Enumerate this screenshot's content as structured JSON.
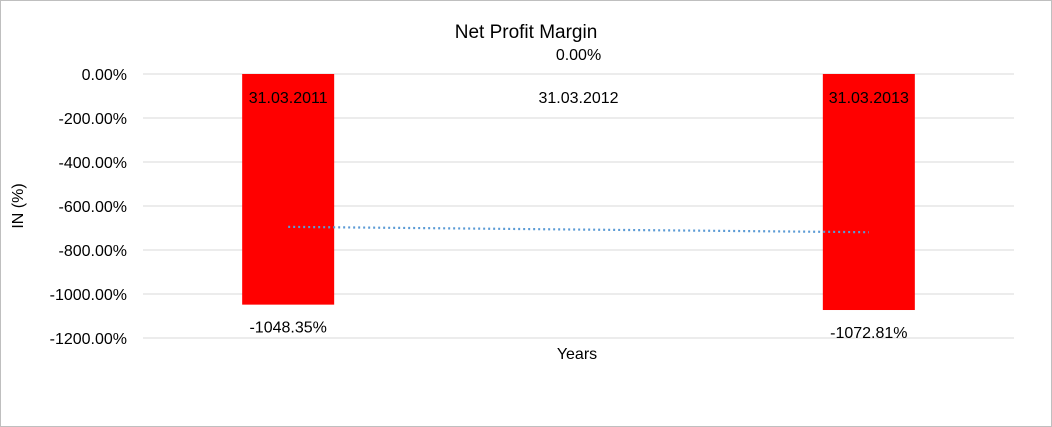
{
  "chart_data": {
    "type": "bar",
    "title": "Net Profit Margin",
    "xlabel": "Years",
    "ylabel": "IN (%)",
    "categories": [
      "31.03.2011",
      "31.03.2012",
      "31.03.2013"
    ],
    "values": [
      -1048.35,
      0,
      -1072.81
    ],
    "data_labels": [
      "-1048.35%",
      "0.00%",
      "-1072.81%"
    ],
    "ylim": [
      -1200,
      0
    ],
    "yticks": [
      0,
      -200,
      -400,
      -600,
      -800,
      -1000,
      -1200
    ],
    "ytick_labels": [
      "0.00%",
      "-200.00%",
      "-400.00%",
      "-600.00%",
      "-800.00%",
      "-1000.00%",
      "-1200.00%"
    ],
    "grid": true,
    "legend": "none",
    "trendline": {
      "type": "linear",
      "style": "dotted"
    },
    "colors": {
      "bar": "#ff0000",
      "trendline": "#5b9bd5",
      "grid": "#d9d9d9"
    }
  }
}
